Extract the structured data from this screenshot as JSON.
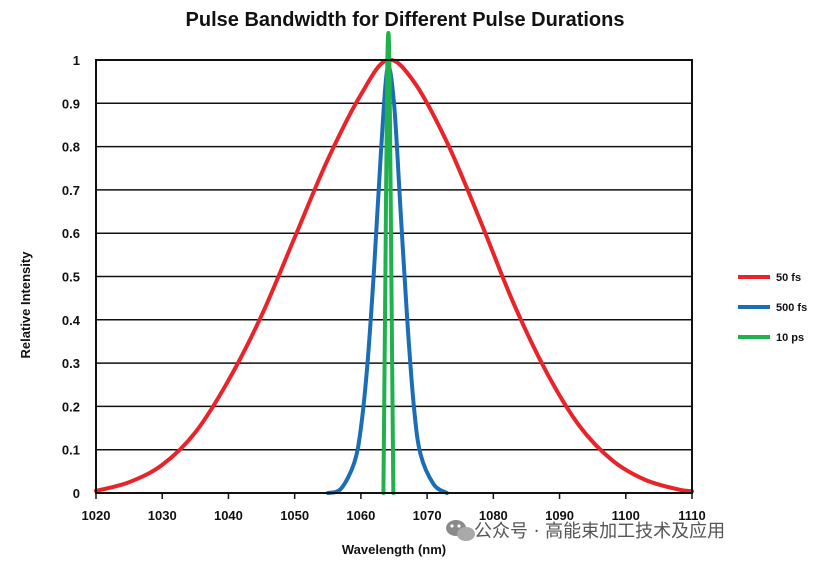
{
  "chart_data": {
    "type": "line",
    "title": "Pulse Bandwidth for Different Pulse Durations",
    "xlabel": "Wavelength (nm)",
    "ylabel": "Relative Intensity",
    "xlim": [
      1020,
      1110
    ],
    "ylim": [
      0,
      1
    ],
    "x_ticks": [
      1020,
      1030,
      1040,
      1050,
      1060,
      1070,
      1080,
      1090,
      1100,
      1110
    ],
    "y_ticks": [
      0,
      0.1,
      0.2,
      0.3,
      0.4,
      0.5,
      0.6,
      0.7,
      0.8,
      0.9,
      1
    ],
    "grid": "horizontal",
    "legend_position": "right",
    "series": [
      {
        "name": "50 fs",
        "color": "#e8242a",
        "x": [
          1020,
          1025,
          1030,
          1035,
          1040,
          1045,
          1050,
          1055,
          1060,
          1064,
          1068,
          1073,
          1078,
          1083,
          1088,
          1093,
          1098,
          1103,
          1108,
          1110
        ],
        "y": [
          0.005,
          0.025,
          0.065,
          0.14,
          0.26,
          0.41,
          0.59,
          0.77,
          0.92,
          1.0,
          0.95,
          0.81,
          0.63,
          0.44,
          0.28,
          0.155,
          0.075,
          0.03,
          0.008,
          0.004
        ]
      },
      {
        "name": "500 fs",
        "color": "#1b6db5",
        "x": [
          1055,
          1057,
          1059,
          1060,
          1061,
          1062,
          1063,
          1064,
          1065,
          1066,
          1067,
          1068,
          1069,
          1071,
          1073
        ],
        "y": [
          0.0,
          0.01,
          0.07,
          0.15,
          0.3,
          0.52,
          0.78,
          0.98,
          0.9,
          0.65,
          0.4,
          0.2,
          0.09,
          0.02,
          0.0
        ]
      },
      {
        "name": "10 ps",
        "color": "#1fb14b",
        "x": [
          1063.4,
          1063.7,
          1064.0,
          1064.3,
          1064.6,
          1064.9
        ],
        "y": [
          0.0,
          0.5,
          1.0,
          1.0,
          0.5,
          0.0
        ]
      }
    ]
  },
  "watermark": {
    "icon": "wechat-icon",
    "text": "公众号 · 高能束加工技术及应用"
  }
}
